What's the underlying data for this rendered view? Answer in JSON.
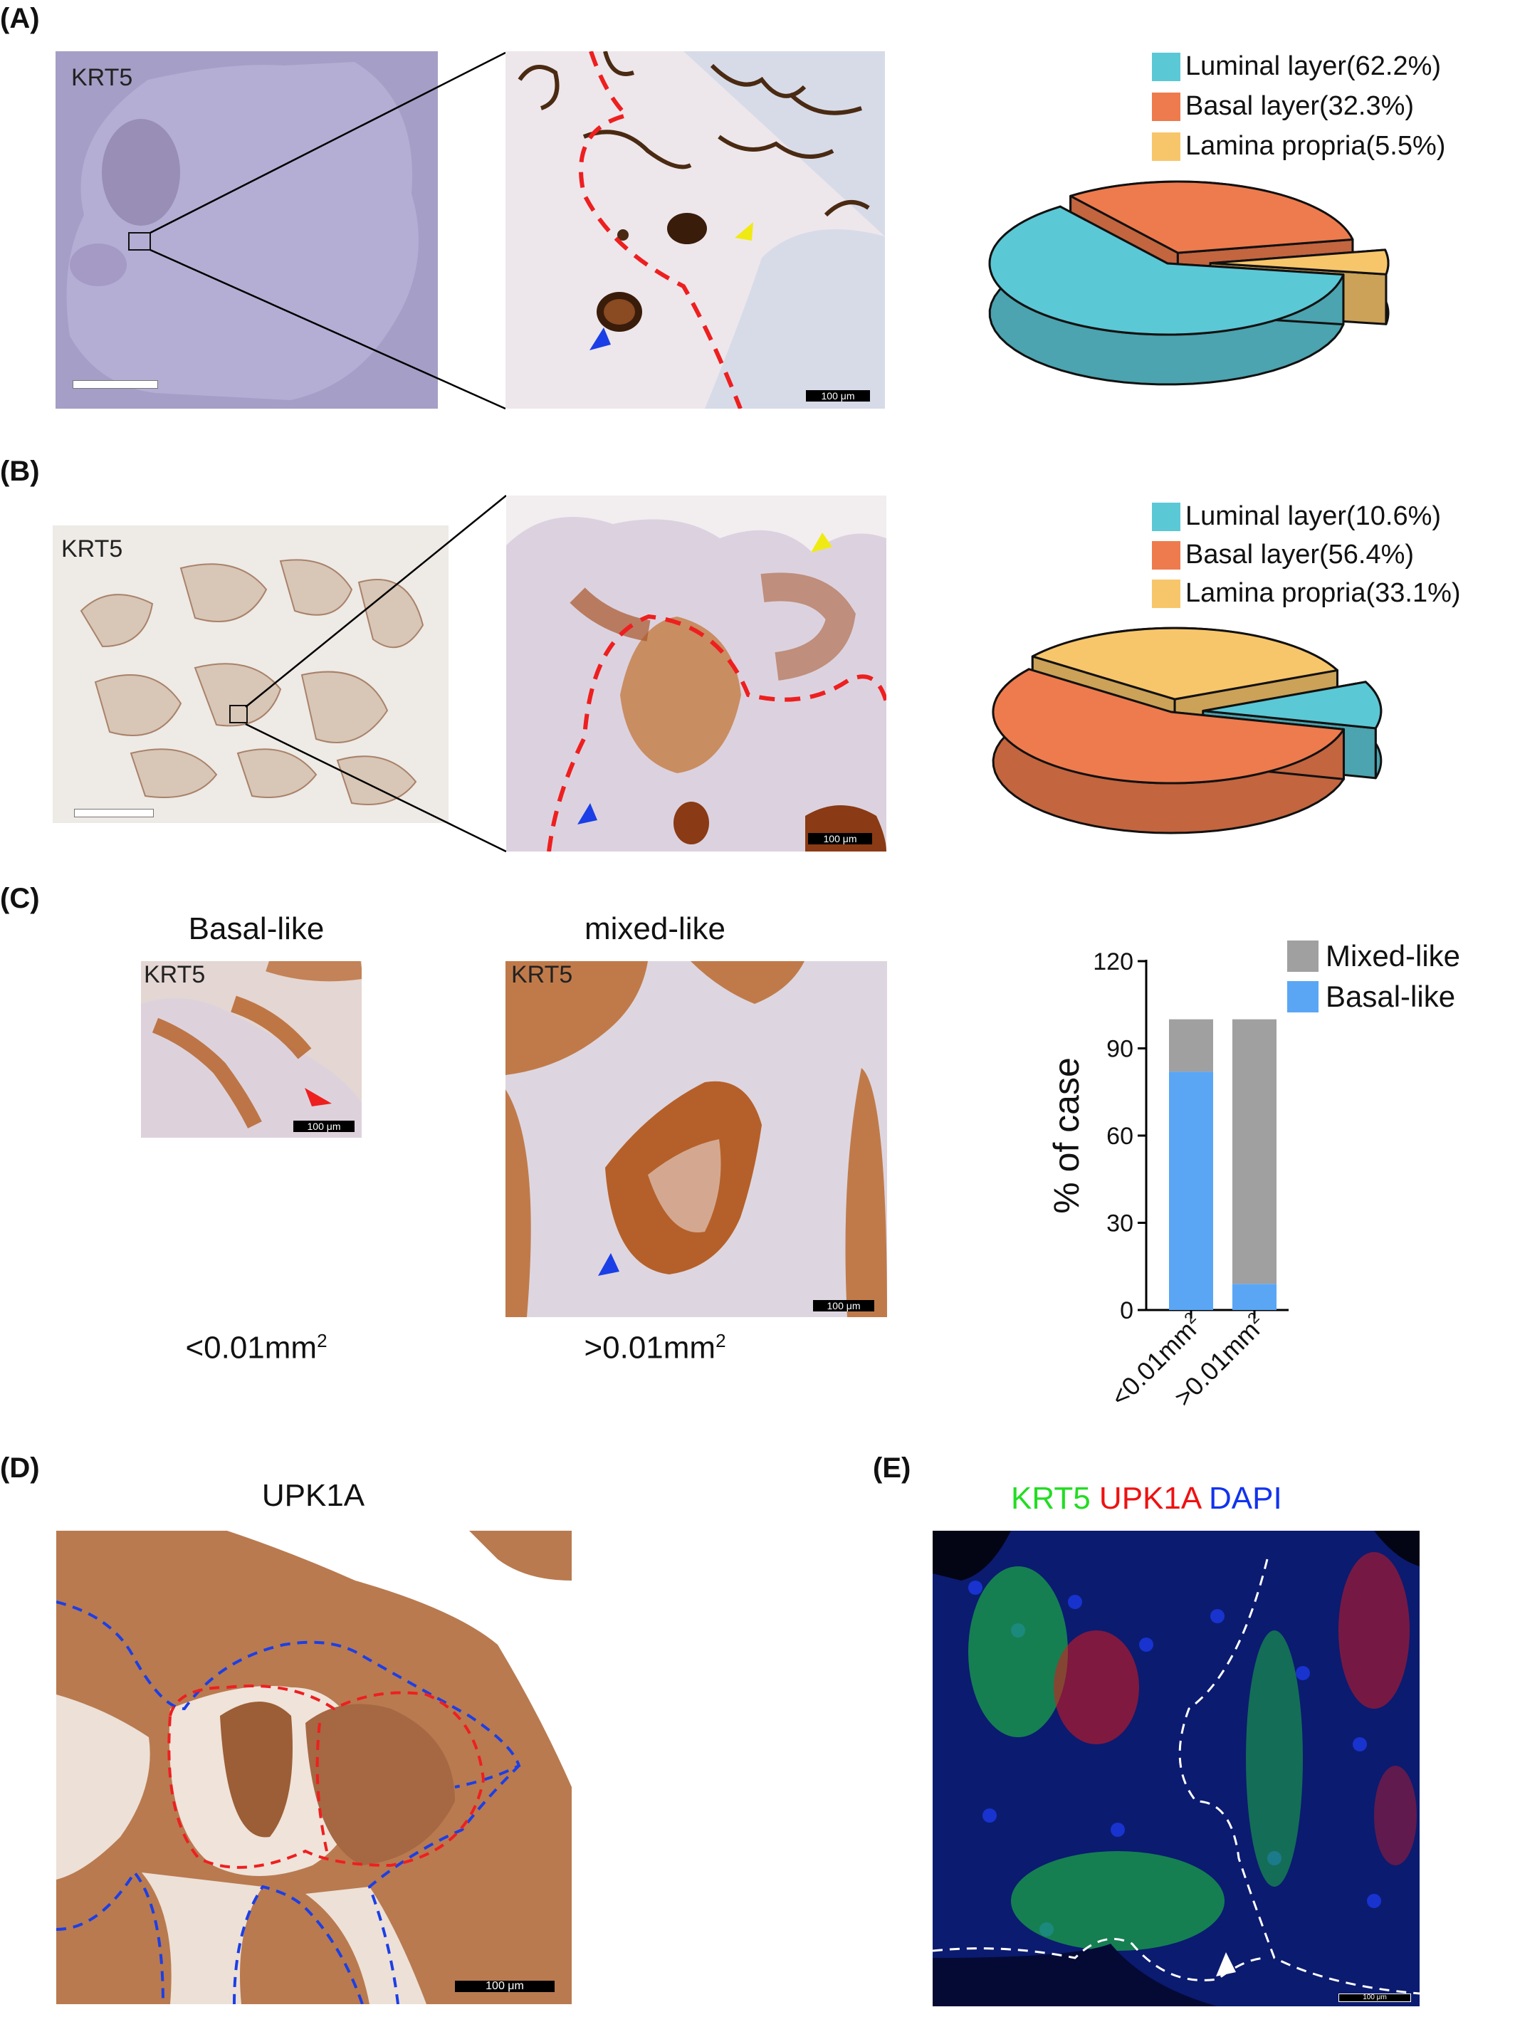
{
  "panels": {
    "A": {
      "letter": "(A)",
      "image_label": "KRT5",
      "scale_bar": "100 μm",
      "legend": [
        "Luminal layer(62.2%)",
        "Basal layer(32.3%)",
        "Lamina propria(5.5%)"
      ]
    },
    "B": {
      "letter": "(B)",
      "image_label": "KRT5",
      "scale_bar": "100 μm",
      "legend": [
        "Luminal layer(10.6%)",
        "Basal layer(56.4%)",
        "Lamina propria(33.1%)"
      ]
    },
    "C": {
      "letter": "(C)",
      "basal_title": "Basal-like",
      "mixed_title": "mixed-like",
      "basal_label": "KRT5",
      "mixed_label": "KRT5",
      "scale_bar": "100 μm",
      "basal_caption": "<0.01mm",
      "mixed_caption": ">0.01mm",
      "sup": "2"
    },
    "D": {
      "letter": "(D)",
      "title": "UPK1A",
      "scale_bar": "100 μm"
    },
    "E": {
      "letter": "(E)",
      "title_krt5": "KRT5",
      "title_upk1a": "UPK1A",
      "title_dapi": "DAPI",
      "scale_bar": "100 μm"
    }
  },
  "colors": {
    "luminal": "#5bc8d6",
    "basal": "#ee7b4d",
    "lamina": "#f8c66a",
    "mixed": "#a0a0a0",
    "basal_like": "#5aa6f5",
    "krt5": "#22dd22",
    "upk1a": "#ee1111",
    "dapi": "#1133ee"
  },
  "chart_data": [
    {
      "type": "pie",
      "panel": "A",
      "labels": [
        "Luminal layer",
        "Basal layer",
        "Lamina propria"
      ],
      "values": [
        62.2,
        32.3,
        5.5
      ]
    },
    {
      "type": "pie",
      "panel": "B",
      "labels": [
        "Luminal layer",
        "Basal layer",
        "Lamina propria"
      ],
      "values": [
        10.6,
        56.4,
        33.1
      ]
    },
    {
      "type": "bar",
      "panel": "C",
      "stacked": true,
      "categories": [
        "<0.01mm2",
        ">0.01mm2"
      ],
      "tick_labels": [
        "<0.01mm",
        ">0.01mm"
      ],
      "tick_sup": "2",
      "series": [
        {
          "name": "Basal-like",
          "values": [
            82,
            9
          ]
        },
        {
          "name": "Mixed-like",
          "values": [
            18,
            91
          ]
        }
      ],
      "ylabel": "% of case",
      "ylim": [
        0,
        120
      ],
      "yticks": [
        0,
        30,
        60,
        90,
        120
      ],
      "legend_position": "top-right"
    }
  ]
}
